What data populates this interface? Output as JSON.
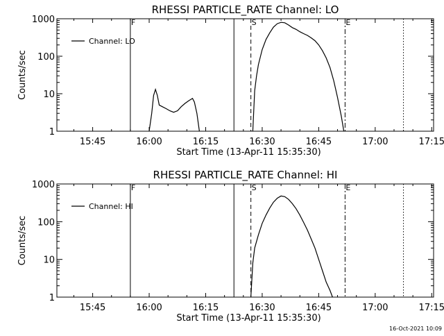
{
  "chart_data": [
    {
      "type": "line",
      "title": "RHESSI PARTICLE_RATE Channel: LO",
      "xlabel": "Start Time (13-Apr-11 15:35:30)",
      "ylabel": "Counts/sec",
      "yscale": "log",
      "xlim": [
        "15:35:30",
        "17:15:30"
      ],
      "ylim": [
        1,
        1000
      ],
      "x_ticks": [
        "15:45",
        "16:00",
        "16:15",
        "16:30",
        "16:45",
        "17:00",
        "17:15"
      ],
      "y_ticks": [
        "1",
        "10",
        "100",
        "1000"
      ],
      "legend": {
        "label": "Channel: LO",
        "placement": "top-left"
      },
      "vertical_lines": [
        {
          "time": "15:55:00",
          "style": "solid",
          "label": "F"
        },
        {
          "time": "16:22:30",
          "style": "solid",
          "label": ""
        },
        {
          "time": "16:27:00",
          "style": "dashed",
          "label": "S"
        },
        {
          "time": "16:52:00",
          "style": "dash-dot",
          "label": "E"
        },
        {
          "time": "17:07:30",
          "style": "dotted",
          "label": ""
        }
      ],
      "series": [
        {
          "name": "Channel: LO",
          "segments": [
            [
              [
                "16:00:00",
                1
              ],
              [
                "16:00:40",
                3
              ],
              [
                "16:01:10",
                9
              ],
              [
                "16:01:40",
                13
              ],
              [
                "16:02:10",
                9
              ],
              [
                "16:02:40",
                5
              ],
              [
                "16:03:30",
                4.5
              ],
              [
                "16:04:30",
                4
              ],
              [
                "16:05:30",
                3.5
              ],
              [
                "16:06:30",
                3.2
              ],
              [
                "16:07:30",
                3.5
              ],
              [
                "16:08:30",
                4.5
              ],
              [
                "16:09:30",
                5.5
              ],
              [
                "16:10:30",
                6.5
              ],
              [
                "16:11:30",
                7.5
              ],
              [
                "16:12:00",
                6
              ],
              [
                "16:12:40",
                3
              ],
              [
                "16:13:20",
                1
              ]
            ],
            [
              [
                "16:27:30",
                1
              ],
              [
                "16:28:00",
                12
              ],
              [
                "16:28:30",
                30
              ],
              [
                "16:29:00",
                60
              ],
              [
                "16:30:00",
                150
              ],
              [
                "16:31:00",
                280
              ],
              [
                "16:32:00",
                420
              ],
              [
                "16:33:00",
                600
              ],
              [
                "16:34:00",
                740
              ],
              [
                "16:35:00",
                800
              ],
              [
                "16:36:00",
                780
              ],
              [
                "16:37:00",
                680
              ],
              [
                "16:38:00",
                580
              ],
              [
                "16:39:00",
                520
              ],
              [
                "16:40:00",
                450
              ],
              [
                "16:41:00",
                400
              ],
              [
                "16:42:00",
                360
              ],
              [
                "16:43:00",
                310
              ],
              [
                "16:44:00",
                260
              ],
              [
                "16:45:00",
                200
              ],
              [
                "16:46:00",
                140
              ],
              [
                "16:47:00",
                90
              ],
              [
                "16:48:00",
                50
              ],
              [
                "16:49:00",
                22
              ],
              [
                "16:50:00",
                8
              ],
              [
                "16:51:00",
                2.5
              ],
              [
                "16:51:40",
                1
              ]
            ]
          ]
        }
      ]
    },
    {
      "type": "line",
      "title": "RHESSI PARTICLE_RATE Channel: HI",
      "xlabel": "Start Time (13-Apr-11 15:35:30)",
      "ylabel": "Counts/sec",
      "yscale": "log",
      "xlim": [
        "15:35:30",
        "17:15:30"
      ],
      "ylim": [
        1,
        1000
      ],
      "x_ticks": [
        "15:45",
        "16:00",
        "16:15",
        "16:30",
        "16:45",
        "17:00",
        "17:15"
      ],
      "y_ticks": [
        "1",
        "10",
        "100",
        "1000"
      ],
      "legend": {
        "label": "Channel: HI",
        "placement": "top-left"
      },
      "vertical_lines": [
        {
          "time": "15:55:00",
          "style": "solid",
          "label": "F"
        },
        {
          "time": "16:22:30",
          "style": "solid",
          "label": ""
        },
        {
          "time": "16:27:00",
          "style": "dashed",
          "label": "S"
        },
        {
          "time": "16:52:00",
          "style": "dash-dot",
          "label": "E"
        },
        {
          "time": "17:07:30",
          "style": "dotted",
          "label": ""
        }
      ],
      "series": [
        {
          "name": "Channel: HI",
          "segments": [
            [
              [
                "16:27:00",
                1
              ],
              [
                "16:27:30",
                8
              ],
              [
                "16:28:00",
                20
              ],
              [
                "16:29:00",
                45
              ],
              [
                "16:30:00",
                90
              ],
              [
                "16:31:00",
                150
              ],
              [
                "16:32:00",
                230
              ],
              [
                "16:33:00",
                330
              ],
              [
                "16:34:00",
                420
              ],
              [
                "16:35:00",
                480
              ],
              [
                "16:36:00",
                460
              ],
              [
                "16:37:00",
                390
              ],
              [
                "16:38:00",
                300
              ],
              [
                "16:39:00",
                220
              ],
              [
                "16:40:00",
                150
              ],
              [
                "16:41:00",
                95
              ],
              [
                "16:42:00",
                60
              ],
              [
                "16:43:00",
                35
              ],
              [
                "16:44:00",
                20
              ],
              [
                "16:45:00",
                10
              ],
              [
                "16:46:00",
                5
              ],
              [
                "16:47:00",
                2.5
              ],
              [
                "16:48:00",
                1.5
              ],
              [
                "16:48:40",
                1
              ]
            ]
          ]
        }
      ]
    }
  ],
  "footer": {
    "timestamp": "16-Oct-2021 10:09"
  }
}
